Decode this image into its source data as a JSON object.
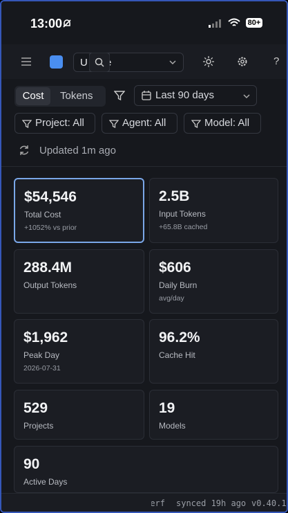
{
  "status_bar": {
    "time": "13:00",
    "battery": "80+"
  },
  "header": {
    "select_start": "U",
    "select_end": "e",
    "help": "?"
  },
  "toggle": {
    "active": "Cost",
    "inactive": "Tokens"
  },
  "date_range": "Last 90 days",
  "filters": [
    "Project: All",
    "Agent: All",
    "Model: All"
  ],
  "updated": "Updated 1m ago",
  "cards": [
    {
      "value": "$54,546",
      "label": "Total Cost",
      "sub": "+1052% vs prior"
    },
    {
      "value": "2.5B",
      "label": "Input Tokens",
      "sub": "+65.8B cached"
    },
    {
      "value": "288.4M",
      "label": "Output Tokens"
    },
    {
      "value": "$606",
      "label": "Daily Burn",
      "sub": "avg/day"
    },
    {
      "value": "$1,962",
      "label": "Peak Day",
      "sub": "2026-07-31"
    },
    {
      "value": "96.2%",
      "label": "Cache Hit"
    },
    {
      "value": "529",
      "label": "Projects"
    },
    {
      "value": "19",
      "label": "Models"
    },
    {
      "value": "90",
      "label": "Active Days"
    }
  ],
  "footer": {
    "left": "Perf",
    "synced": "synced 19h ago",
    "version": "v0.40.1"
  }
}
